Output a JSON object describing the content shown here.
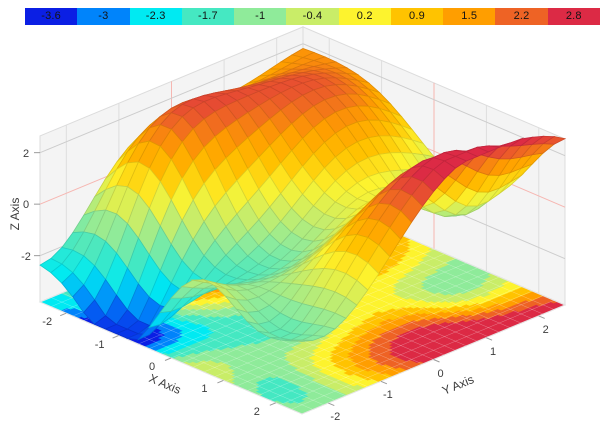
{
  "legend": {
    "labels": [
      "-3.6",
      "-3",
      "-2.3",
      "-1.7",
      "-1",
      "-0.4",
      "0.2",
      "0.9",
      "1.5",
      "2.2",
      "2.8"
    ],
    "colors": [
      "#0b1fe4",
      "#0084fb",
      "#00eaf2",
      "#45e8c2",
      "#8feb9a",
      "#c9ed68",
      "#fdf32e",
      "#ffc300",
      "#ff9e00",
      "#ee6325",
      "#dc2a45"
    ],
    "text_color": "#141414"
  },
  "chart_data": {
    "type": "surface3d",
    "title": "",
    "xlabel": "X Axis",
    "ylabel": "Y Axis",
    "zlabel": "Z Axis",
    "x_range": [
      -2.5,
      2.5
    ],
    "y_range": [
      -2.5,
      2.5
    ],
    "x_ticks": [
      -2,
      -1,
      0,
      1,
      2
    ],
    "y_ticks": [
      -2,
      -1,
      0,
      1,
      2
    ],
    "z_ticks": [
      -2,
      0,
      2
    ],
    "z_floor": -3.8,
    "z_top": 2.65,
    "color_domain": [
      -3.92,
      3.08
    ],
    "grid_cells": 24,
    "floor_contour": true,
    "floor_contour_bands": 11,
    "surface_model": {
      "description": "z(x,y) = base + sum of gaussian bumps [x0, y0, amplitude, sigma_x, sigma_y]",
      "base": -0.25,
      "z_clamp": [
        -3.76,
        3.38
      ],
      "bumps": [
        [
          2.15,
          0.2,
          3.5,
          0.85,
          1.4
        ],
        [
          0.95,
          -2.55,
          1.9,
          0.8,
          0.75
        ],
        [
          3.05,
          2.1,
          3.0,
          1.1,
          1.0
        ],
        [
          -1.75,
          -0.9,
          3.3,
          0.7,
          1.15
        ],
        [
          -0.95,
          1.35,
          2.45,
          0.95,
          1.15
        ],
        [
          -2.9,
          3.1,
          2.0,
          1.2,
          1.2
        ],
        [
          -1.15,
          -2.45,
          -4.3,
          0.8,
          0.75
        ],
        [
          1.55,
          -2.25,
          -2.7,
          0.7,
          0.62
        ],
        [
          1.35,
          1.75,
          -2.3,
          0.72,
          0.62
        ],
        [
          -3.05,
          -2.1,
          -2.2,
          1.1,
          0.95
        ],
        [
          0.2,
          3.3,
          -1.3,
          1.0,
          0.9
        ],
        [
          0.1,
          -0.8,
          -1.7,
          1.0,
          1.05
        ],
        [
          3.0,
          -1.3,
          -1.6,
          0.9,
          0.85
        ]
      ]
    },
    "colors": {
      "background": "#ffffff",
      "wall": "#f4f4f4",
      "wall_edge": "#dcdcdc",
      "grid_minor": "#dedede",
      "grid_major": "#cccccc",
      "zero_line": "#f6b6b1",
      "floor_border": "#e6e6e6",
      "floor_mesh": "rgba(255,255,255,0.38)",
      "tick": "#9b9b9b",
      "label": "#3d3d3d"
    }
  }
}
